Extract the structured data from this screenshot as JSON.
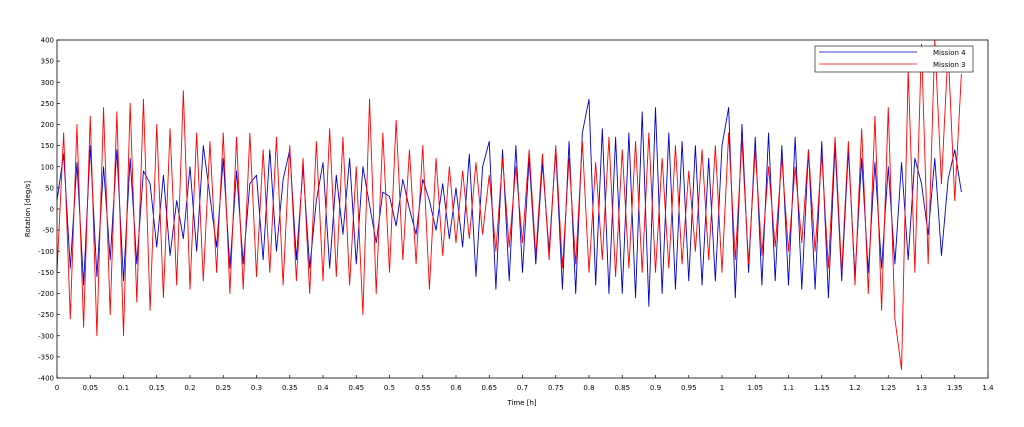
{
  "chart_data": {
    "type": "line",
    "title": "",
    "xlabel": "Time [h]",
    "ylabel": "Rotation [deg/s]",
    "xlim": [
      0,
      1.4
    ],
    "ylim": [
      -400,
      400
    ],
    "xticks": [
      0,
      0.05,
      0.1,
      0.15,
      0.2,
      0.25,
      0.3,
      0.35,
      0.4,
      0.45,
      0.5,
      0.55,
      0.6,
      0.65,
      0.7,
      0.75,
      0.8,
      0.85,
      0.9,
      0.95,
      1,
      1.05,
      1.1,
      1.15,
      1.2,
      1.25,
      1.3,
      1.35,
      1.4
    ],
    "xtick_labels": [
      "0",
      "0.05",
      "0.1",
      "0.15",
      "0.2",
      "0.25",
      "0.3",
      "0.35",
      "0.4",
      "0.45",
      "0.5",
      "0.55",
      "0.6",
      "0.65",
      "0.7",
      "0.75",
      "0.8",
      "0.85",
      "0.9",
      "0.95",
      "1",
      "1.05",
      "1.1",
      "1.15",
      "1.2",
      "1.25",
      "1.3",
      "1.35",
      "1.4"
    ],
    "yticks": [
      -400,
      -350,
      -300,
      -250,
      -200,
      -150,
      -100,
      -50,
      0,
      50,
      100,
      150,
      200,
      250,
      300,
      350,
      400
    ],
    "ytick_labels": [
      "-400",
      "-350",
      "-300",
      "-250",
      "-200",
      "-150",
      "-100",
      "-50",
      "0",
      "50",
      "100",
      "150",
      "200",
      "250",
      "300",
      "350",
      "400"
    ],
    "grid": false,
    "legend_position": "top-right",
    "series": [
      {
        "name": "Mission 4",
        "color": "#0000cc",
        "x": [
          0,
          0.01,
          0.02,
          0.03,
          0.04,
          0.05,
          0.06,
          0.07,
          0.08,
          0.09,
          0.1,
          0.11,
          0.12,
          0.13,
          0.14,
          0.15,
          0.16,
          0.17,
          0.18,
          0.19,
          0.2,
          0.21,
          0.22,
          0.23,
          0.24,
          0.25,
          0.26,
          0.27,
          0.28,
          0.29,
          0.3,
          0.31,
          0.32,
          0.33,
          0.34,
          0.35,
          0.36,
          0.37,
          0.38,
          0.39,
          0.4,
          0.41,
          0.42,
          0.43,
          0.44,
          0.45,
          0.46,
          0.47,
          0.48,
          0.49,
          0.5,
          0.51,
          0.52,
          0.53,
          0.54,
          0.55,
          0.56,
          0.57,
          0.58,
          0.59,
          0.6,
          0.61,
          0.62,
          0.63,
          0.64,
          0.65,
          0.66,
          0.67,
          0.68,
          0.69,
          0.7,
          0.71,
          0.72,
          0.73,
          0.74,
          0.75,
          0.76,
          0.77,
          0.78,
          0.79,
          0.8,
          0.81,
          0.82,
          0.83,
          0.84,
          0.85,
          0.86,
          0.87,
          0.88,
          0.89,
          0.9,
          0.91,
          0.92,
          0.93,
          0.94,
          0.95,
          0.96,
          0.97,
          0.98,
          0.99,
          1,
          1.01,
          1.02,
          1.03,
          1.04,
          1.05,
          1.06,
          1.07,
          1.08,
          1.09,
          1.1,
          1.11,
          1.12,
          1.13,
          1.14,
          1.15,
          1.16,
          1.17,
          1.18,
          1.19,
          1.2,
          1.21,
          1.22,
          1.23,
          1.24,
          1.25,
          1.26,
          1.27,
          1.28,
          1.29,
          1.3,
          1.31,
          1.32,
          1.33,
          1.34,
          1.35,
          1.36
        ],
        "y": [
          20,
          130,
          -140,
          110,
          -180,
          150,
          -160,
          100,
          -120,
          140,
          -170,
          120,
          -130,
          90,
          60,
          -90,
          80,
          -110,
          20,
          -70,
          100,
          -100,
          150,
          30,
          -90,
          120,
          -140,
          90,
          -130,
          60,
          80,
          -120,
          140,
          -100,
          70,
          140,
          -120,
          100,
          -140,
          20,
          110,
          -140,
          80,
          -60,
          120,
          -130,
          100,
          10,
          -80,
          40,
          30,
          -40,
          70,
          0,
          -60,
          70,
          20,
          -50,
          60,
          -70,
          50,
          -90,
          130,
          -160,
          100,
          160,
          -190,
          140,
          -170,
          150,
          -150,
          120,
          -130,
          110,
          -100,
          140,
          -190,
          160,
          -200,
          180,
          260,
          -180,
          190,
          -200,
          170,
          -200,
          180,
          -210,
          230,
          -230,
          240,
          -200,
          180,
          -190,
          160,
          -170,
          150,
          -180,
          120,
          -170,
          150,
          240,
          -210,
          200,
          -150,
          170,
          -180,
          180,
          -170,
          150,
          -180,
          170,
          -190,
          140,
          -190,
          160,
          -210,
          150,
          -170,
          140,
          -160,
          120,
          -150,
          110,
          -140,
          100,
          -130,
          110,
          -120,
          120,
          60,
          -60,
          120,
          -110,
          70,
          140,
          40
        ]
      },
      {
        "name": "Mission 3",
        "color": "#ff0000",
        "x": [
          0,
          0.01,
          0.02,
          0.03,
          0.04,
          0.05,
          0.06,
          0.07,
          0.08,
          0.09,
          0.1,
          0.11,
          0.12,
          0.13,
          0.14,
          0.15,
          0.16,
          0.17,
          0.18,
          0.19,
          0.2,
          0.21,
          0.22,
          0.23,
          0.24,
          0.25,
          0.26,
          0.27,
          0.28,
          0.29,
          0.3,
          0.31,
          0.32,
          0.33,
          0.34,
          0.35,
          0.36,
          0.37,
          0.38,
          0.39,
          0.4,
          0.41,
          0.42,
          0.43,
          0.44,
          0.45,
          0.46,
          0.47,
          0.48,
          0.49,
          0.5,
          0.51,
          0.52,
          0.53,
          0.54,
          0.55,
          0.56,
          0.57,
          0.58,
          0.59,
          0.6,
          0.61,
          0.62,
          0.63,
          0.64,
          0.65,
          0.66,
          0.67,
          0.68,
          0.69,
          0.7,
          0.71,
          0.72,
          0.73,
          0.74,
          0.75,
          0.76,
          0.77,
          0.78,
          0.79,
          0.8,
          0.81,
          0.82,
          0.83,
          0.84,
          0.85,
          0.86,
          0.87,
          0.88,
          0.89,
          0.9,
          0.91,
          0.92,
          0.93,
          0.94,
          0.95,
          0.96,
          0.97,
          0.98,
          0.99,
          1,
          1.01,
          1.02,
          1.03,
          1.04,
          1.05,
          1.06,
          1.07,
          1.08,
          1.09,
          1.1,
          1.11,
          1.12,
          1.13,
          1.14,
          1.15,
          1.16,
          1.17,
          1.18,
          1.19,
          1.2,
          1.21,
          1.22,
          1.23,
          1.24,
          1.25,
          1.26,
          1.27,
          1.28,
          1.29,
          1.3,
          1.31,
          1.32,
          1.33,
          1.34,
          1.35,
          1.36
        ],
        "y": [
          -150,
          180,
          -260,
          200,
          -280,
          220,
          -300,
          240,
          -250,
          230,
          -300,
          250,
          -220,
          260,
          -240,
          200,
          -210,
          190,
          -180,
          280,
          -190,
          180,
          -170,
          160,
          -150,
          180,
          -200,
          170,
          -190,
          180,
          -160,
          140,
          -150,
          170,
          -180,
          150,
          -170,
          120,
          -200,
          160,
          -170,
          190,
          -160,
          170,
          -180,
          100,
          -250,
          260,
          -200,
          180,
          -150,
          210,
          -120,
          140,
          -130,
          150,
          -190,
          120,
          -110,
          100,
          -80,
          90,
          -70,
          110,
          -60,
          80,
          -100,
          120,
          -90,
          100,
          -80,
          140,
          -110,
          130,
          -120,
          150,
          -140,
          120,
          -130,
          160,
          -150,
          110,
          -120,
          170,
          -160,
          140,
          -140,
          160,
          -150,
          180,
          -150,
          120,
          -140,
          150,
          -130,
          90,
          -100,
          140,
          -120,
          150,
          -150,
          180,
          -120,
          160,
          -130,
          140,
          -110,
          100,
          -90,
          120,
          -100,
          100,
          -80,
          140,
          -100,
          130,
          -140,
          170,
          -150,
          160,
          -180,
          190,
          -200,
          220,
          -240,
          240,
          -260,
          -380,
          330,
          -150,
          390,
          -130,
          400,
          60,
          380,
          20,
          320
        ]
      }
    ]
  }
}
